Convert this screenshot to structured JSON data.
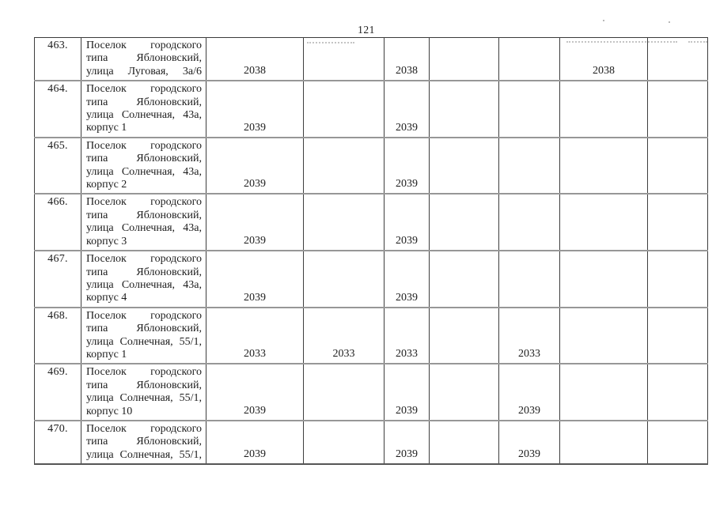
{
  "page_number": "121",
  "table": {
    "rows": [
      {
        "number": "463.",
        "address_lines": [
          "Поселок городского",
          "типа Яблоновский,",
          "улица Луговая, 3а/6"
        ],
        "years": [
          "2038",
          "",
          "2038",
          "",
          "",
          "2038",
          ""
        ]
      },
      {
        "number": "464.",
        "address_lines": [
          "Поселок городского",
          "типа Яблоновский,",
          "улица Солнечная, 43а,",
          "корпус 1"
        ],
        "years": [
          "2039",
          "",
          "2039",
          "",
          "",
          "",
          ""
        ]
      },
      {
        "number": "465.",
        "address_lines": [
          "Поселок городского",
          "типа Яблоновский,",
          "улица Солнечная, 43а,",
          "корпус 2"
        ],
        "years": [
          "2039",
          "",
          "2039",
          "",
          "",
          "",
          ""
        ]
      },
      {
        "number": "466.",
        "address_lines": [
          "Поселок городского",
          "типа Яблоновский,",
          "улица Солнечная, 43а,",
          "корпус 3"
        ],
        "years": [
          "2039",
          "",
          "2039",
          "",
          "",
          "",
          ""
        ]
      },
      {
        "number": "467.",
        "address_lines": [
          "Поселок городского",
          "типа Яблоновский,",
          "улица Солнечная, 43а,",
          "корпус 4"
        ],
        "years": [
          "2039",
          "",
          "2039",
          "",
          "",
          "",
          ""
        ]
      },
      {
        "number": "468.",
        "address_lines": [
          "Поселок городского",
          "типа Яблоновский,",
          "улица Солнечная, 55/1,",
          "корпус 1"
        ],
        "years": [
          "2033",
          "2033",
          "2033",
          "",
          "2033",
          "",
          ""
        ]
      },
      {
        "number": "469.",
        "address_lines": [
          "Поселок городского",
          "типа Яблоновский,",
          "улица Солнечная, 55/1,",
          "корпус 10"
        ],
        "years": [
          "2039",
          "",
          "2039",
          "",
          "2039",
          "",
          ""
        ]
      },
      {
        "number": "470.",
        "address_lines": [
          "Поселок городского",
          "типа Яблоновский,",
          "улица Солнечная, 55/1,"
        ],
        "years": [
          "2039",
          "",
          "2039",
          "",
          "2039",
          "",
          ""
        ]
      }
    ]
  }
}
